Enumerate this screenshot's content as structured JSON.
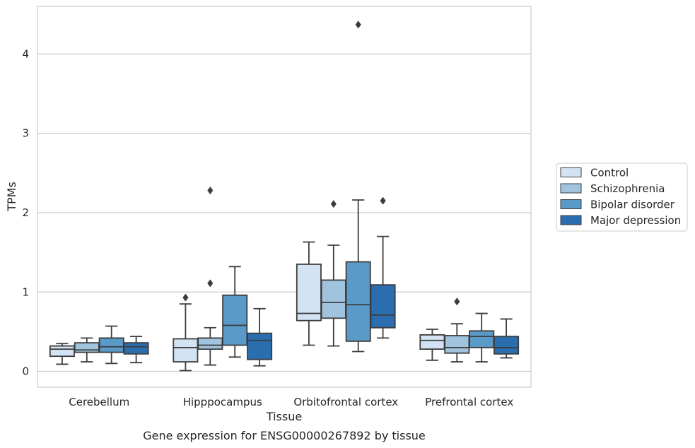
{
  "chart_data": {
    "type": "box",
    "title": "",
    "caption": "Gene expression for ENSG00000267892 by tissue",
    "xlabel": "Tissue",
    "ylabel": "TPMs",
    "ylim": [
      -0.2,
      4.6
    ],
    "yticks": [
      0,
      1,
      2,
      3,
      4
    ],
    "grid": "horizontal",
    "legend": "right",
    "categories": [
      "Cerebellum",
      "Hipppocampus",
      "Orbitofrontal cortex",
      "Prefrontal cortex"
    ],
    "series": [
      {
        "name": "Control",
        "color": "#d3e3f3",
        "boxes": [
          {
            "whislo": 0.09,
            "q1": 0.19,
            "med": 0.28,
            "q3": 0.32,
            "whishi": 0.35,
            "fliers": []
          },
          {
            "whislo": 0.01,
            "q1": 0.12,
            "med": 0.3,
            "q3": 0.41,
            "whishi": 0.85,
            "fliers": [
              0.93
            ]
          },
          {
            "whislo": 0.33,
            "q1": 0.64,
            "med": 0.73,
            "q3": 1.35,
            "whishi": 1.63,
            "fliers": []
          },
          {
            "whislo": 0.14,
            "q1": 0.28,
            "med": 0.39,
            "q3": 0.46,
            "whishi": 0.53,
            "fliers": []
          }
        ]
      },
      {
        "name": "Schizophrenia",
        "color": "#a0c4de",
        "boxes": [
          {
            "whislo": 0.12,
            "q1": 0.24,
            "med": 0.27,
            "q3": 0.36,
            "whishi": 0.42,
            "fliers": []
          },
          {
            "whislo": 0.08,
            "q1": 0.28,
            "med": 0.33,
            "q3": 0.42,
            "whishi": 0.55,
            "fliers": [
              1.11,
              2.28
            ]
          },
          {
            "whislo": 0.32,
            "q1": 0.67,
            "med": 0.87,
            "q3": 1.15,
            "whishi": 1.59,
            "fliers": [
              2.11
            ]
          },
          {
            "whislo": 0.12,
            "q1": 0.23,
            "med": 0.3,
            "q3": 0.45,
            "whishi": 0.6,
            "fliers": [
              0.88
            ]
          }
        ]
      },
      {
        "name": "Bipolar disorder",
        "color": "#5a9ac8",
        "boxes": [
          {
            "whislo": 0.1,
            "q1": 0.24,
            "med": 0.31,
            "q3": 0.42,
            "whishi": 0.57,
            "fliers": []
          },
          {
            "whislo": 0.18,
            "q1": 0.33,
            "med": 0.58,
            "q3": 0.96,
            "whishi": 1.32,
            "fliers": []
          },
          {
            "whislo": 0.25,
            "q1": 0.38,
            "med": 0.84,
            "q3": 1.38,
            "whishi": 2.16,
            "fliers": [
              4.37
            ]
          },
          {
            "whislo": 0.12,
            "q1": 0.3,
            "med": 0.44,
            "q3": 0.51,
            "whishi": 0.73,
            "fliers": []
          }
        ]
      },
      {
        "name": "Major depression",
        "color": "#2a6eaf",
        "boxes": [
          {
            "whislo": 0.11,
            "q1": 0.22,
            "med": 0.31,
            "q3": 0.36,
            "whishi": 0.44,
            "fliers": []
          },
          {
            "whislo": 0.07,
            "q1": 0.15,
            "med": 0.39,
            "q3": 0.48,
            "whishi": 0.79,
            "fliers": []
          },
          {
            "whislo": 0.42,
            "q1": 0.55,
            "med": 0.71,
            "q3": 1.09,
            "whishi": 1.7,
            "fliers": [
              2.15
            ]
          },
          {
            "whislo": 0.17,
            "q1": 0.22,
            "med": 0.3,
            "q3": 0.44,
            "whishi": 0.66,
            "fliers": []
          }
        ]
      }
    ]
  }
}
